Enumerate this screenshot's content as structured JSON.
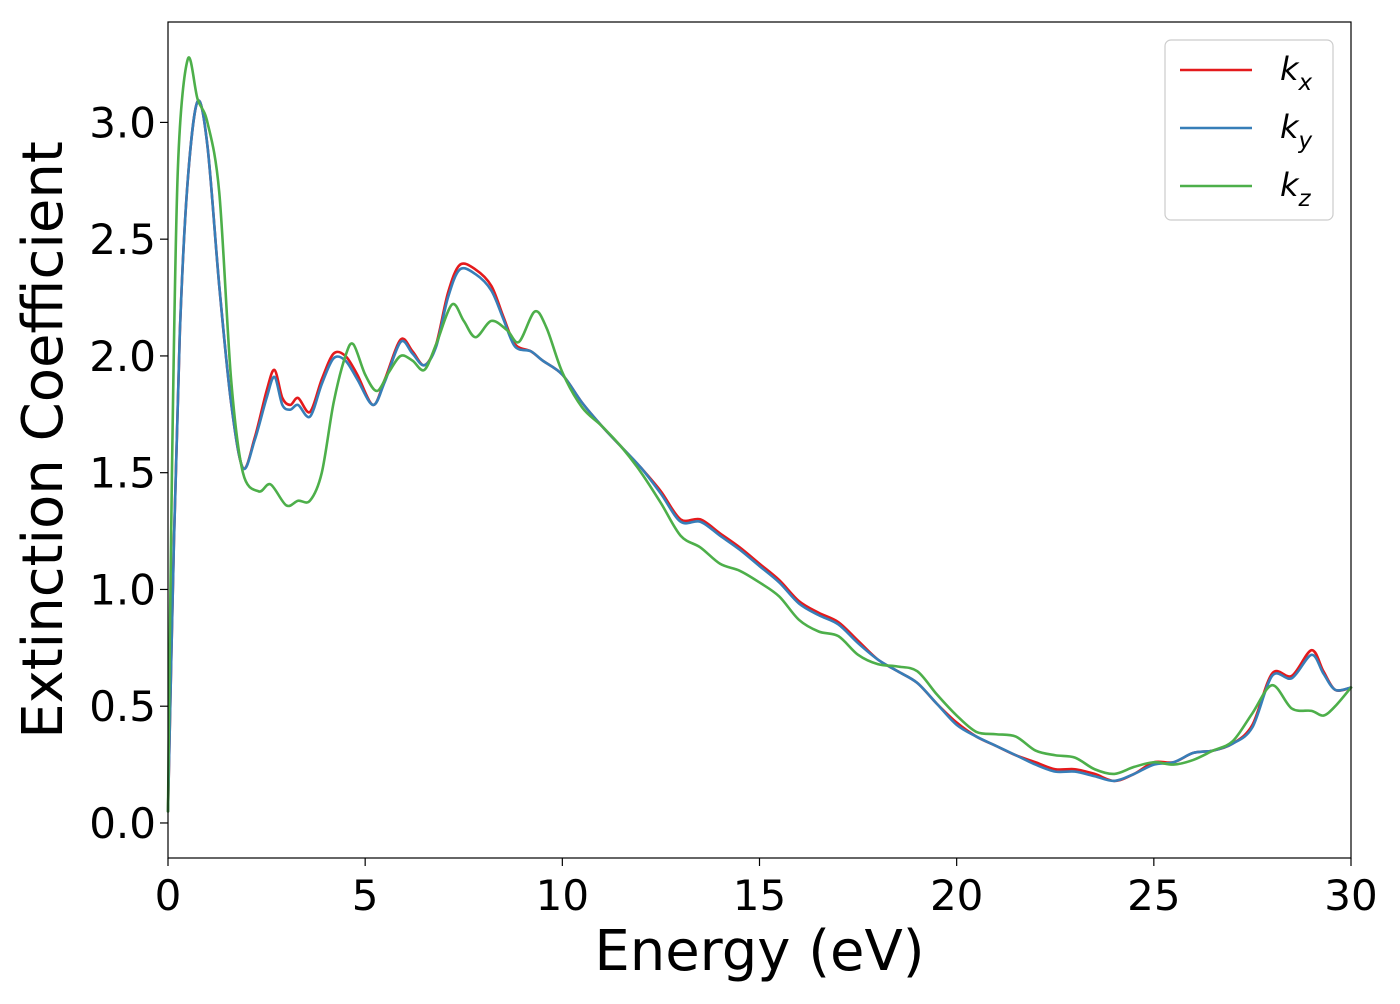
{
  "chart_data": {
    "type": "line",
    "xlabel": "Energy (eV)",
    "ylabel": "Extinction Coefficient",
    "xlim": [
      0,
      30
    ],
    "ylim": [
      -0.15,
      3.43
    ],
    "xticks": [
      0,
      5,
      10,
      15,
      20,
      25,
      30
    ],
    "xtick_labels": [
      "0",
      "5",
      "10",
      "15",
      "20",
      "25",
      "30"
    ],
    "yticks": [
      0.0,
      0.5,
      1.0,
      1.5,
      2.0,
      2.5,
      3.0
    ],
    "ytick_labels": [
      "0.0",
      "0.5",
      "1.0",
      "1.5",
      "2.0",
      "2.5",
      "3.0"
    ],
    "grid": false,
    "legend_position": "top-right",
    "series": [
      {
        "name": "k",
        "subscript": "x",
        "color": "#e41a1c",
        "points": [
          [
            0,
            0.05
          ],
          [
            0.15,
            1.2
          ],
          [
            0.3,
            2.1
          ],
          [
            0.5,
            2.75
          ],
          [
            0.75,
            3.09
          ],
          [
            1.0,
            2.9
          ],
          [
            1.3,
            2.3
          ],
          [
            1.6,
            1.8
          ],
          [
            1.9,
            1.52
          ],
          [
            2.2,
            1.65
          ],
          [
            2.5,
            1.85
          ],
          [
            2.7,
            1.94
          ],
          [
            2.9,
            1.82
          ],
          [
            3.1,
            1.79
          ],
          [
            3.3,
            1.82
          ],
          [
            3.6,
            1.76
          ],
          [
            3.9,
            1.9
          ],
          [
            4.2,
            2.01
          ],
          [
            4.5,
            2.0
          ],
          [
            4.8,
            1.92
          ],
          [
            5.2,
            1.79
          ],
          [
            5.5,
            1.9
          ],
          [
            5.9,
            2.07
          ],
          [
            6.2,
            2.02
          ],
          [
            6.5,
            1.96
          ],
          [
            6.8,
            2.05
          ],
          [
            7.1,
            2.27
          ],
          [
            7.4,
            2.39
          ],
          [
            7.8,
            2.37
          ],
          [
            8.2,
            2.3
          ],
          [
            8.5,
            2.17
          ],
          [
            8.8,
            2.05
          ],
          [
            9.2,
            2.02
          ],
          [
            9.5,
            1.98
          ],
          [
            10.0,
            1.92
          ],
          [
            10.5,
            1.8
          ],
          [
            11.0,
            1.7
          ],
          [
            11.5,
            1.61
          ],
          [
            12.0,
            1.52
          ],
          [
            12.5,
            1.42
          ],
          [
            13.0,
            1.3
          ],
          [
            13.5,
            1.3
          ],
          [
            14.0,
            1.24
          ],
          [
            14.5,
            1.18
          ],
          [
            15.0,
            1.11
          ],
          [
            15.5,
            1.04
          ],
          [
            16.0,
            0.95
          ],
          [
            16.5,
            0.9
          ],
          [
            17.0,
            0.86
          ],
          [
            17.5,
            0.78
          ],
          [
            18.0,
            0.7
          ],
          [
            18.5,
            0.65
          ],
          [
            19.0,
            0.6
          ],
          [
            19.5,
            0.51
          ],
          [
            20.0,
            0.43
          ],
          [
            20.5,
            0.37
          ],
          [
            21.0,
            0.33
          ],
          [
            21.5,
            0.29
          ],
          [
            22.0,
            0.26
          ],
          [
            22.5,
            0.23
          ],
          [
            23.0,
            0.23
          ],
          [
            23.5,
            0.21
          ],
          [
            24.0,
            0.18
          ],
          [
            24.5,
            0.21
          ],
          [
            25.0,
            0.26
          ],
          [
            25.5,
            0.26
          ],
          [
            26.0,
            0.3
          ],
          [
            26.5,
            0.31
          ],
          [
            27.0,
            0.34
          ],
          [
            27.5,
            0.42
          ],
          [
            28.0,
            0.64
          ],
          [
            28.5,
            0.63
          ],
          [
            29.0,
            0.74
          ],
          [
            29.3,
            0.65
          ],
          [
            29.6,
            0.57
          ],
          [
            30.0,
            0.58
          ]
        ]
      },
      {
        "name": "k",
        "subscript": "y",
        "color": "#377eb8",
        "points": [
          [
            0,
            0.05
          ],
          [
            0.15,
            1.2
          ],
          [
            0.3,
            2.1
          ],
          [
            0.5,
            2.75
          ],
          [
            0.75,
            3.09
          ],
          [
            1.0,
            2.9
          ],
          [
            1.3,
            2.3
          ],
          [
            1.6,
            1.8
          ],
          [
            1.9,
            1.52
          ],
          [
            2.2,
            1.64
          ],
          [
            2.5,
            1.82
          ],
          [
            2.7,
            1.91
          ],
          [
            2.9,
            1.79
          ],
          [
            3.1,
            1.77
          ],
          [
            3.3,
            1.79
          ],
          [
            3.6,
            1.74
          ],
          [
            3.9,
            1.88
          ],
          [
            4.2,
            1.99
          ],
          [
            4.5,
            1.98
          ],
          [
            4.8,
            1.9
          ],
          [
            5.2,
            1.79
          ],
          [
            5.5,
            1.89
          ],
          [
            5.9,
            2.06
          ],
          [
            6.2,
            2.01
          ],
          [
            6.5,
            1.96
          ],
          [
            6.8,
            2.04
          ],
          [
            7.1,
            2.25
          ],
          [
            7.4,
            2.37
          ],
          [
            7.8,
            2.35
          ],
          [
            8.2,
            2.28
          ],
          [
            8.5,
            2.16
          ],
          [
            8.8,
            2.04
          ],
          [
            9.2,
            2.02
          ],
          [
            9.5,
            1.98
          ],
          [
            10.0,
            1.92
          ],
          [
            10.5,
            1.8
          ],
          [
            11.0,
            1.7
          ],
          [
            11.5,
            1.61
          ],
          [
            12.0,
            1.52
          ],
          [
            12.5,
            1.41
          ],
          [
            13.0,
            1.29
          ],
          [
            13.5,
            1.29
          ],
          [
            14.0,
            1.23
          ],
          [
            14.5,
            1.17
          ],
          [
            15.0,
            1.1
          ],
          [
            15.5,
            1.03
          ],
          [
            16.0,
            0.94
          ],
          [
            16.5,
            0.89
          ],
          [
            17.0,
            0.85
          ],
          [
            17.5,
            0.77
          ],
          [
            18.0,
            0.7
          ],
          [
            18.5,
            0.65
          ],
          [
            19.0,
            0.6
          ],
          [
            19.5,
            0.51
          ],
          [
            20.0,
            0.42
          ],
          [
            20.5,
            0.37
          ],
          [
            21.0,
            0.33
          ],
          [
            21.5,
            0.29
          ],
          [
            22.0,
            0.25
          ],
          [
            22.5,
            0.22
          ],
          [
            23.0,
            0.22
          ],
          [
            23.5,
            0.2
          ],
          [
            24.0,
            0.18
          ],
          [
            24.5,
            0.21
          ],
          [
            25.0,
            0.25
          ],
          [
            25.5,
            0.26
          ],
          [
            26.0,
            0.3
          ],
          [
            26.5,
            0.31
          ],
          [
            27.0,
            0.34
          ],
          [
            27.5,
            0.41
          ],
          [
            28.0,
            0.63
          ],
          [
            28.5,
            0.62
          ],
          [
            29.0,
            0.72
          ],
          [
            29.3,
            0.64
          ],
          [
            29.6,
            0.57
          ],
          [
            30.0,
            0.58
          ]
        ]
      },
      {
        "name": "k",
        "subscript": "z",
        "color": "#4daf4a",
        "points": [
          [
            0,
            0.05
          ],
          [
            0.1,
            1.5
          ],
          [
            0.25,
            2.8
          ],
          [
            0.5,
            3.27
          ],
          [
            0.75,
            3.1
          ],
          [
            1.0,
            3.0
          ],
          [
            1.3,
            2.7
          ],
          [
            1.6,
            1.9
          ],
          [
            1.9,
            1.5
          ],
          [
            2.3,
            1.42
          ],
          [
            2.6,
            1.45
          ],
          [
            3.0,
            1.36
          ],
          [
            3.3,
            1.38
          ],
          [
            3.6,
            1.38
          ],
          [
            3.9,
            1.5
          ],
          [
            4.2,
            1.8
          ],
          [
            4.5,
            2.0
          ],
          [
            4.7,
            2.05
          ],
          [
            5.0,
            1.92
          ],
          [
            5.3,
            1.85
          ],
          [
            5.6,
            1.93
          ],
          [
            5.9,
            2.0
          ],
          [
            6.2,
            1.98
          ],
          [
            6.5,
            1.94
          ],
          [
            6.8,
            2.05
          ],
          [
            7.2,
            2.22
          ],
          [
            7.5,
            2.15
          ],
          [
            7.8,
            2.08
          ],
          [
            8.2,
            2.15
          ],
          [
            8.6,
            2.11
          ],
          [
            8.9,
            2.06
          ],
          [
            9.3,
            2.19
          ],
          [
            9.6,
            2.12
          ],
          [
            10.0,
            1.93
          ],
          [
            10.5,
            1.78
          ],
          [
            11.0,
            1.7
          ],
          [
            11.5,
            1.61
          ],
          [
            12.0,
            1.5
          ],
          [
            12.5,
            1.37
          ],
          [
            13.0,
            1.23
          ],
          [
            13.5,
            1.18
          ],
          [
            14.0,
            1.11
          ],
          [
            14.5,
            1.08
          ],
          [
            15.0,
            1.03
          ],
          [
            15.5,
            0.97
          ],
          [
            16.0,
            0.87
          ],
          [
            16.5,
            0.82
          ],
          [
            17.0,
            0.8
          ],
          [
            17.5,
            0.72
          ],
          [
            18.0,
            0.68
          ],
          [
            18.5,
            0.67
          ],
          [
            19.0,
            0.65
          ],
          [
            19.5,
            0.55
          ],
          [
            20.0,
            0.46
          ],
          [
            20.5,
            0.39
          ],
          [
            21.0,
            0.38
          ],
          [
            21.5,
            0.37
          ],
          [
            22.0,
            0.31
          ],
          [
            22.5,
            0.29
          ],
          [
            23.0,
            0.28
          ],
          [
            23.5,
            0.23
          ],
          [
            24.0,
            0.21
          ],
          [
            24.5,
            0.24
          ],
          [
            25.0,
            0.26
          ],
          [
            25.5,
            0.25
          ],
          [
            26.0,
            0.27
          ],
          [
            26.5,
            0.31
          ],
          [
            27.0,
            0.35
          ],
          [
            27.5,
            0.47
          ],
          [
            28.0,
            0.59
          ],
          [
            28.5,
            0.49
          ],
          [
            29.0,
            0.48
          ],
          [
            29.3,
            0.46
          ],
          [
            29.6,
            0.5
          ],
          [
            30.0,
            0.58
          ]
        ]
      }
    ]
  }
}
